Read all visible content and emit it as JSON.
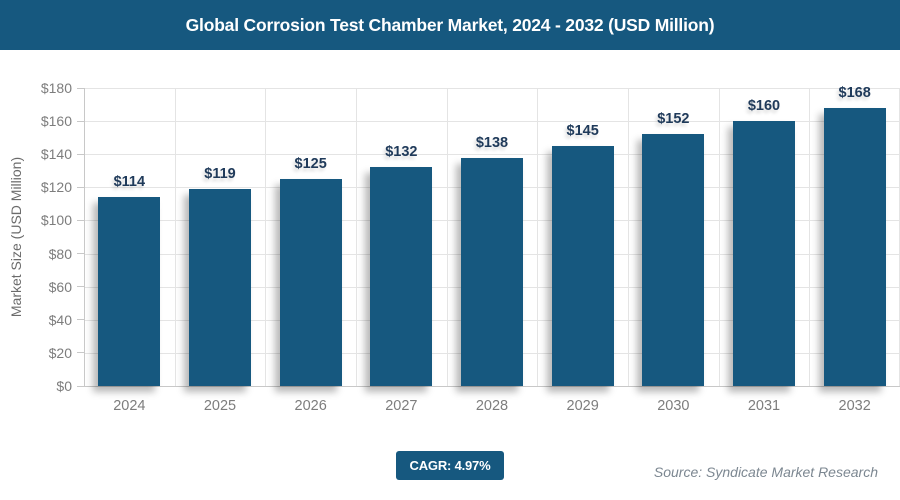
{
  "title": "Global Corrosion Test Chamber Market, 2024 - 2032 (USD Million)",
  "colors": {
    "primary": "#16587F",
    "value_label": "#1F3A5A",
    "axis_text": "#7D7D7D",
    "gridline": "#E4E4E4",
    "axis_line": "#C8C8C8",
    "source_text": "#7C8791"
  },
  "chart_data": {
    "type": "bar",
    "title": "Global Corrosion Test Chamber Market, 2024 - 2032 (USD Million)",
    "categories": [
      "2024",
      "2025",
      "2026",
      "2027",
      "2028",
      "2029",
      "2030",
      "2031",
      "2032"
    ],
    "values": [
      114,
      119,
      125,
      132,
      138,
      145,
      152,
      160,
      168
    ],
    "value_labels": [
      "$114",
      "$119",
      "$125",
      "$132",
      "$138",
      "$145",
      "$152",
      "$160",
      "$168"
    ],
    "xlabel": "",
    "ylabel": "Market Size (USD Million)",
    "ylim": [
      0,
      180
    ],
    "ytick_step": 20,
    "ytick_labels": [
      "$0",
      "$20",
      "$40",
      "$60",
      "$80",
      "$100",
      "$120",
      "$140",
      "$160",
      "$180"
    ],
    "grid": true,
    "legend": false,
    "bar_color": "#16587F"
  },
  "footer": {
    "cagr_label": "CAGR: 4.97%",
    "source": "Source: Syndicate Market Research"
  }
}
